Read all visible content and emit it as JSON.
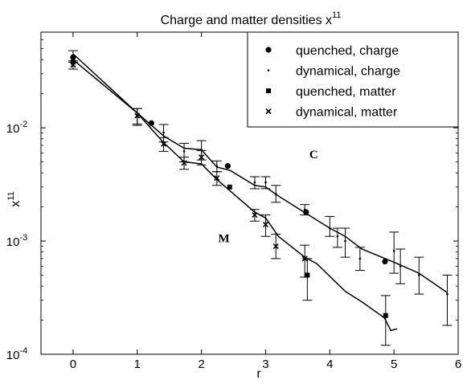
{
  "chart_data": {
    "type": "scatter",
    "title": "Charge and matter densities x",
    "title_sup": "11",
    "xlabel": "r",
    "ylabel": "x",
    "ylabel_sup": "11",
    "xlim": [
      -0.5,
      6
    ],
    "ylim": [
      0.0001,
      0.07
    ],
    "yscale": "log",
    "x_ticks": [
      0,
      1,
      2,
      3,
      4,
      5,
      6
    ],
    "x_tick_labels": [
      "0",
      "1",
      "2",
      "3",
      "4",
      "5",
      "6"
    ],
    "y_ticks": [
      0.0001,
      0.001,
      0.01
    ],
    "y_tick_base": "10",
    "y_tick_exps": [
      "-4",
      "-3",
      "-2"
    ],
    "grid": false,
    "legend_position": "top-right",
    "annotations": [
      {
        "text": "C",
        "x": 3.75,
        "y": 0.0054
      },
      {
        "text": "M",
        "x": 2.35,
        "y": 0.00098
      }
    ],
    "series": [
      {
        "name": "quenched, charge",
        "marker": "circle",
        "points": [
          {
            "x": 0,
            "y": 0.042
          },
          {
            "x": 1.22,
            "y": 0.011
          },
          {
            "x": 2.41,
            "y": 0.0046
          },
          {
            "x": 3.63,
            "y": 0.0018
          },
          {
            "x": 4.86,
            "y": 0.00066
          }
        ]
      },
      {
        "name": "dynamical, charge",
        "marker": "dot",
        "points": [
          {
            "x": 0,
            "y": 0.043,
            "elo": 0.038,
            "ehi": 0.048
          },
          {
            "x": 1.0,
            "y": 0.0128,
            "elo": 0.0105,
            "ehi": 0.0148
          },
          {
            "x": 1.41,
            "y": 0.0091,
            "elo": 0.0075,
            "ehi": 0.0107
          },
          {
            "x": 1.73,
            "y": 0.0062,
            "elo": 0.005,
            "ehi": 0.0073
          },
          {
            "x": 2.0,
            "y": 0.0064,
            "elo": 0.0052,
            "ehi": 0.0077
          },
          {
            "x": 2.24,
            "y": 0.0046,
            "elo": 0.0041,
            "ehi": 0.0051
          },
          {
            "x": 2.83,
            "y": 0.0033,
            "elo": 0.0029,
            "ehi": 0.0037
          },
          {
            "x": 3.0,
            "y": 0.0033,
            "elo": 0.0029,
            "ehi": 0.0037
          },
          {
            "x": 3.16,
            "y": 0.0026,
            "elo": 0.0022,
            "ehi": 0.0031
          },
          {
            "x": 3.61,
            "y": 0.0019,
            "elo": 0.0017,
            "ehi": 0.0021
          },
          {
            "x": 4.0,
            "y": 0.0013,
            "elo": 0.0011,
            "ehi": 0.00165
          },
          {
            "x": 4.12,
            "y": 0.0011,
            "elo": 0.00088,
            "ehi": 0.0013
          },
          {
            "x": 4.24,
            "y": 0.001,
            "elo": 0.00072,
            "ehi": 0.0013
          },
          {
            "x": 4.47,
            "y": 0.0007,
            "elo": 0.00055,
            "ehi": 0.00088
          },
          {
            "x": 5.0,
            "y": 0.00082,
            "elo": 0.00052,
            "ehi": 0.0012
          },
          {
            "x": 5.1,
            "y": 0.0006,
            "elo": 0.00042,
            "ehi": 0.00085
          },
          {
            "x": 5.39,
            "y": 0.0005,
            "elo": 0.00034,
            "ehi": 0.00072
          },
          {
            "x": 5.83,
            "y": 0.00034,
            "elo": 0.00018,
            "ehi": 0.0005
          }
        ]
      },
      {
        "name": "quenched, matter",
        "marker": "square",
        "points": [
          {
            "x": 0,
            "y": 0.038
          },
          {
            "x": 2.44,
            "y": 0.003
          },
          {
            "x": 3.65,
            "y": 0.0005,
            "elo": 0.0003,
            "ehi": 0.0007
          },
          {
            "x": 4.87,
            "y": 0.00022,
            "elo": 0.00012,
            "ehi": 0.00033
          }
        ]
      },
      {
        "name": "dynamical, matter",
        "marker": "x",
        "points": [
          {
            "x": 0,
            "y": 0.036,
            "elo": 0.033,
            "ehi": 0.039
          },
          {
            "x": 1.0,
            "y": 0.0128,
            "elo": 0.0108,
            "ehi": 0.0148
          },
          {
            "x": 1.41,
            "y": 0.0072,
            "elo": 0.0062,
            "ehi": 0.0082
          },
          {
            "x": 1.73,
            "y": 0.0049,
            "elo": 0.0043,
            "ehi": 0.0055
          },
          {
            "x": 2.0,
            "y": 0.0055,
            "elo": 0.0047,
            "ehi": 0.0063
          },
          {
            "x": 2.24,
            "y": 0.0036,
            "elo": 0.0031,
            "ehi": 0.0041
          },
          {
            "x": 2.83,
            "y": 0.0017,
            "elo": 0.0015,
            "ehi": 0.0019
          },
          {
            "x": 3.0,
            "y": 0.0014,
            "elo": 0.0011,
            "ehi": 0.0017
          },
          {
            "x": 3.16,
            "y": 0.0009,
            "elo": 0.0007,
            "ehi": 0.00115
          },
          {
            "x": 3.61,
            "y": 0.0007,
            "elo": 0.00048,
            "ehi": 0.00092
          }
        ]
      }
    ],
    "fit_lines": [
      {
        "label": "C",
        "points": [
          [
            0,
            0.045
          ],
          [
            1.0,
            0.0135
          ],
          [
            1.41,
            0.0085
          ],
          [
            1.73,
            0.0066
          ],
          [
            2.0,
            0.0064
          ],
          [
            2.24,
            0.0045
          ],
          [
            2.45,
            0.0042
          ],
          [
            2.83,
            0.0031
          ],
          [
            3.0,
            0.003
          ],
          [
            3.2,
            0.0025
          ],
          [
            3.6,
            0.0018
          ],
          [
            4.0,
            0.0013
          ],
          [
            4.24,
            0.0011
          ],
          [
            4.5,
            0.00085
          ],
          [
            5.0,
            0.00065
          ],
          [
            5.39,
            0.00052
          ],
          [
            5.83,
            0.00035
          ]
        ]
      },
      {
        "label": "M",
        "points": [
          [
            0,
            0.04
          ],
          [
            1.0,
            0.0135
          ],
          [
            1.41,
            0.0074
          ],
          [
            1.73,
            0.005
          ],
          [
            2.0,
            0.0048
          ],
          [
            2.24,
            0.0035
          ],
          [
            2.83,
            0.0018
          ],
          [
            3.0,
            0.0016
          ],
          [
            3.2,
            0.0011
          ],
          [
            3.61,
            0.00072
          ],
          [
            3.8,
            0.00063
          ],
          [
            4.24,
            0.00036
          ],
          [
            4.5,
            0.00029
          ],
          [
            4.85,
            0.00021
          ],
          [
            4.95,
            0.000162
          ],
          [
            5.05,
            0.000168
          ]
        ]
      }
    ]
  }
}
